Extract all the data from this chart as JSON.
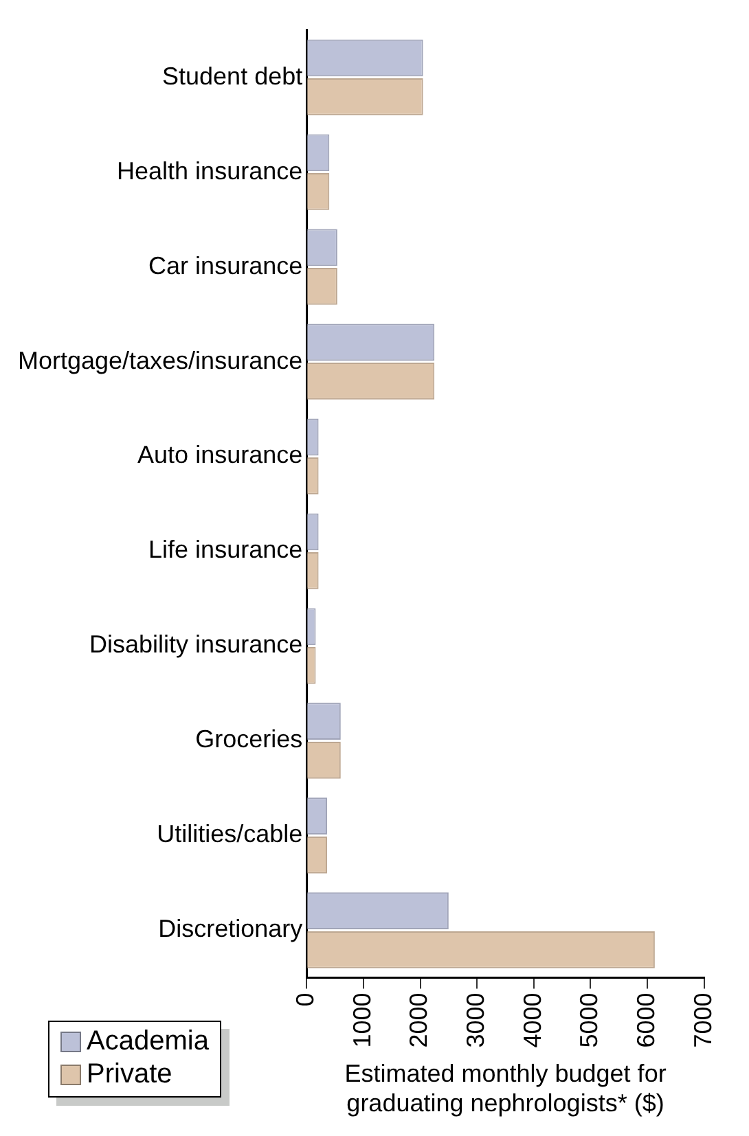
{
  "chart_data": {
    "type": "bar",
    "orientation": "horizontal",
    "categories": [
      "Student debt",
      "Health insurance",
      "Car insurance",
      "Mortgage/taxes/insurance",
      "Auto insurance",
      "Life insurance",
      "Disability insurance",
      "Groceries",
      "Utilities/cable",
      "Discretionary"
    ],
    "series": [
      {
        "name": "Academia",
        "color": "#bcc1d8",
        "values": [
          2050,
          400,
          540,
          2250,
          210,
          210,
          160,
          600,
          360,
          2500
        ]
      },
      {
        "name": "Private",
        "color": "#dec5ab",
        "values": [
          2050,
          400,
          540,
          2250,
          210,
          210,
          160,
          600,
          360,
          6130
        ]
      }
    ],
    "xlabel": "Estimated monthly budget for graduating nephrologists* ($)",
    "xlim": [
      0,
      7000
    ],
    "xticks": [
      0,
      1000,
      2000,
      3000,
      4000,
      5000,
      6000,
      7000
    ],
    "grid": false,
    "legend": "bottom left"
  }
}
